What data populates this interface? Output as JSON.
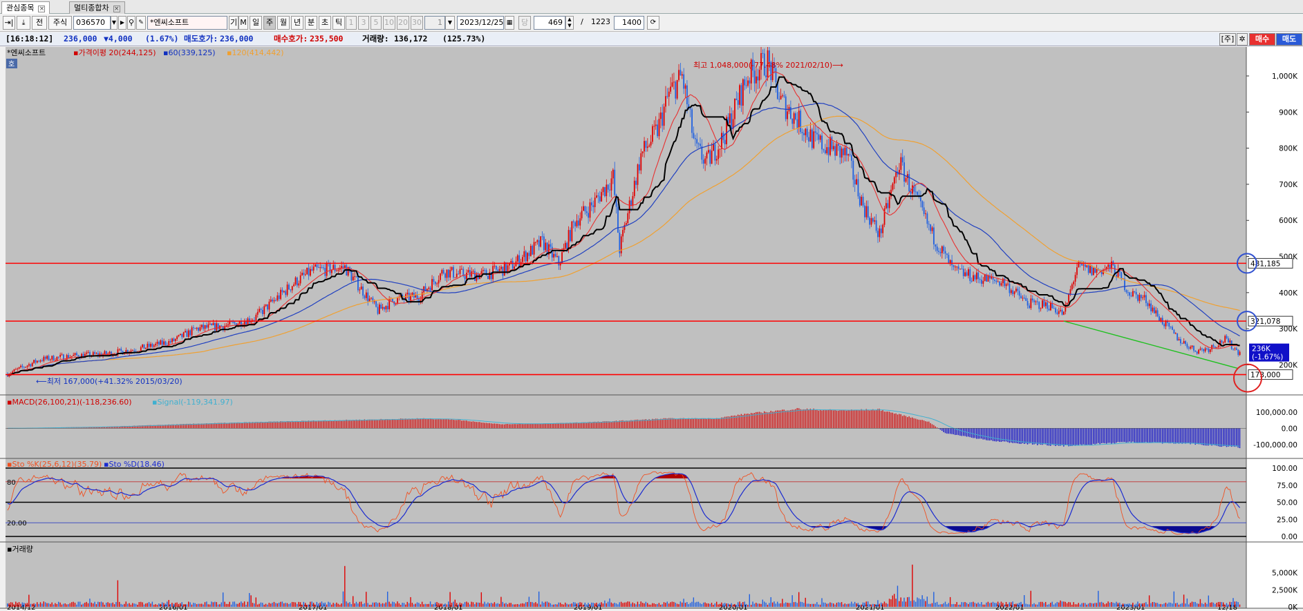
{
  "tabs": [
    {
      "label": "관심종목"
    },
    {
      "label": "멀티종합차"
    }
  ],
  "toolbar": {
    "btn_a": "⇥|",
    "btn_b": "⤓",
    "btn_jeon": "전",
    "stock_type": "주식",
    "code": "036570",
    "name": "*엔씨소프트",
    "gi": "기",
    "m": "M",
    "periods": [
      "일",
      "주",
      "월",
      "년",
      "분",
      "초",
      "틱"
    ],
    "nums": [
      "1",
      "3",
      "5",
      "10",
      "20",
      "30"
    ],
    "interval": "1",
    "date": "2023/12/25",
    "dang": "당",
    "count": "469",
    "slash": "/",
    "total": "1223",
    "view": "1400"
  },
  "info": {
    "time": "[16:18:12]",
    "price": "236,000",
    "change": "▼4,000",
    "pct": "(1.67%)",
    "ask_label": "매도호가:",
    "ask": "236,000",
    "bid_label": "매수호가:",
    "bid": "235,500",
    "vol_label": "거래량:",
    "vol": "136,172",
    "vol_pct": "(125.73%)",
    "btn_ju": "[주]",
    "btn_gear": "✲",
    "btn_buy": "매수",
    "btn_sell": "매도"
  },
  "colors": {
    "bg": "#c0c0c0",
    "up": "#e00000",
    "down": "#2060e0",
    "ma20": "#e83030",
    "ma60": "#2040c0",
    "ma120": "#f0a030",
    "cloud": "#000000",
    "hline": "#ff0000",
    "trend": "#20c020"
  },
  "chart_data": [
    {
      "type": "candlestick",
      "stock": "*엔씨소프트",
      "legend": [
        "*엔씨소프트",
        "가격이평 20(244,125)",
        "60(339,125)",
        "120(414,442)"
      ],
      "badge": "호",
      "x_ticks": [
        "2014/12",
        "2016/01",
        "2017/01",
        "2018/01",
        "2019/01",
        "2020/01",
        "2021/01",
        "2022/01",
        "2023/01",
        "12/18"
      ],
      "y_ticks": [
        "1,000K",
        "900K",
        "800K",
        "700K",
        "600K",
        "500K",
        "400K",
        "300K",
        "200K"
      ],
      "ylim": [
        155000,
        1065000
      ],
      "price_anchors": [
        [
          0,
          175000
        ],
        [
          20,
          215000
        ],
        [
          40,
          225000
        ],
        [
          60,
          230000
        ],
        [
          80,
          245000
        ],
        [
          100,
          265000
        ],
        [
          115,
          300000
        ],
        [
          135,
          310000
        ],
        [
          150,
          330000
        ],
        [
          160,
          370000
        ],
        [
          175,
          430000
        ],
        [
          185,
          460000
        ],
        [
          205,
          470000
        ],
        [
          215,
          410000
        ],
        [
          225,
          350000
        ],
        [
          235,
          380000
        ],
        [
          250,
          390000
        ],
        [
          265,
          460000
        ],
        [
          275,
          450000
        ],
        [
          290,
          450000
        ],
        [
          305,
          470000
        ],
        [
          325,
          540000
        ],
        [
          335,
          480000
        ],
        [
          345,
          600000
        ],
        [
          355,
          640000
        ],
        [
          368,
          720000
        ],
        [
          372,
          520000
        ],
        [
          385,
          780000
        ],
        [
          395,
          850000
        ],
        [
          402,
          950000
        ],
        [
          410,
          1000000
        ],
        [
          418,
          800000
        ],
        [
          425,
          760000
        ],
        [
          435,
          830000
        ],
        [
          450,
          1000000
        ],
        [
          462,
          1040000
        ],
        [
          470,
          930000
        ],
        [
          480,
          880000
        ],
        [
          490,
          820000
        ],
        [
          500,
          800000
        ],
        [
          510,
          780000
        ],
        [
          520,
          640000
        ],
        [
          530,
          560000
        ],
        [
          542,
          760000
        ],
        [
          550,
          680000
        ],
        [
          562,
          560000
        ],
        [
          575,
          460000
        ],
        [
          590,
          440000
        ],
        [
          605,
          430000
        ],
        [
          620,
          370000
        ],
        [
          633,
          365000
        ],
        [
          642,
          340000
        ],
        [
          650,
          470000
        ],
        [
          660,
          460000
        ],
        [
          672,
          470000
        ],
        [
          682,
          400000
        ],
        [
          692,
          380000
        ],
        [
          700,
          330000
        ],
        [
          712,
          270000
        ],
        [
          722,
          240000
        ],
        [
          730,
          245000
        ],
        [
          740,
          270000
        ],
        [
          748,
          236000
        ]
      ],
      "annotation_high": "최고 1,048,000(-77.48% 2021/02/10)⟶",
      "annotation_low": "⟵최저 167,000(+41.32% 2015/03/20)",
      "hlines": [
        481185,
        321078,
        173000
      ],
      "hline_labels": [
        "481,185",
        "321,078",
        "173,000"
      ],
      "price_label": "236K",
      "price_label_pct": "(-1.67%)",
      "trend_line": [
        [
          642,
          321078
        ],
        [
          748,
          190000
        ]
      ]
    },
    {
      "type": "line",
      "name": "MACD",
      "legend": [
        "MACD(26,100,21)(-118,236.60)",
        "Signal(-119,341.97)"
      ],
      "y_ticks": [
        "100,000.00",
        "0.00",
        "-100,000.00"
      ],
      "ylim": [
        -160000,
        180000
      ],
      "anchors": [
        [
          0,
          0
        ],
        [
          60,
          10000
        ],
        [
          120,
          30000
        ],
        [
          180,
          45000
        ],
        [
          250,
          60000
        ],
        [
          270,
          55000
        ],
        [
          300,
          25000
        ],
        [
          330,
          30000
        ],
        [
          360,
          40000
        ],
        [
          400,
          60000
        ],
        [
          430,
          60000
        ],
        [
          450,
          90000
        ],
        [
          480,
          120000
        ],
        [
          505,
          110000
        ],
        [
          530,
          115000
        ],
        [
          560,
          40000
        ],
        [
          570,
          -30000
        ],
        [
          600,
          -80000
        ],
        [
          640,
          -110000
        ],
        [
          680,
          -85000
        ],
        [
          720,
          -95000
        ],
        [
          748,
          -118000
        ]
      ]
    },
    {
      "type": "line",
      "name": "Stochastic",
      "legend": [
        "Sto %K(25,6,12)(35.79)",
        "Sto %D(18.46)"
      ],
      "y_ticks": [
        "100.00",
        "75.00",
        "50.00",
        "25.00",
        "0.00"
      ],
      "levels": [
        "80",
        "20.00"
      ],
      "ylim": [
        0,
        100
      ]
    },
    {
      "type": "bar",
      "name": "거래량",
      "legend": [
        "거래량"
      ],
      "y_ticks": [
        "5,000K",
        "2,500K",
        "0K"
      ]
    }
  ]
}
